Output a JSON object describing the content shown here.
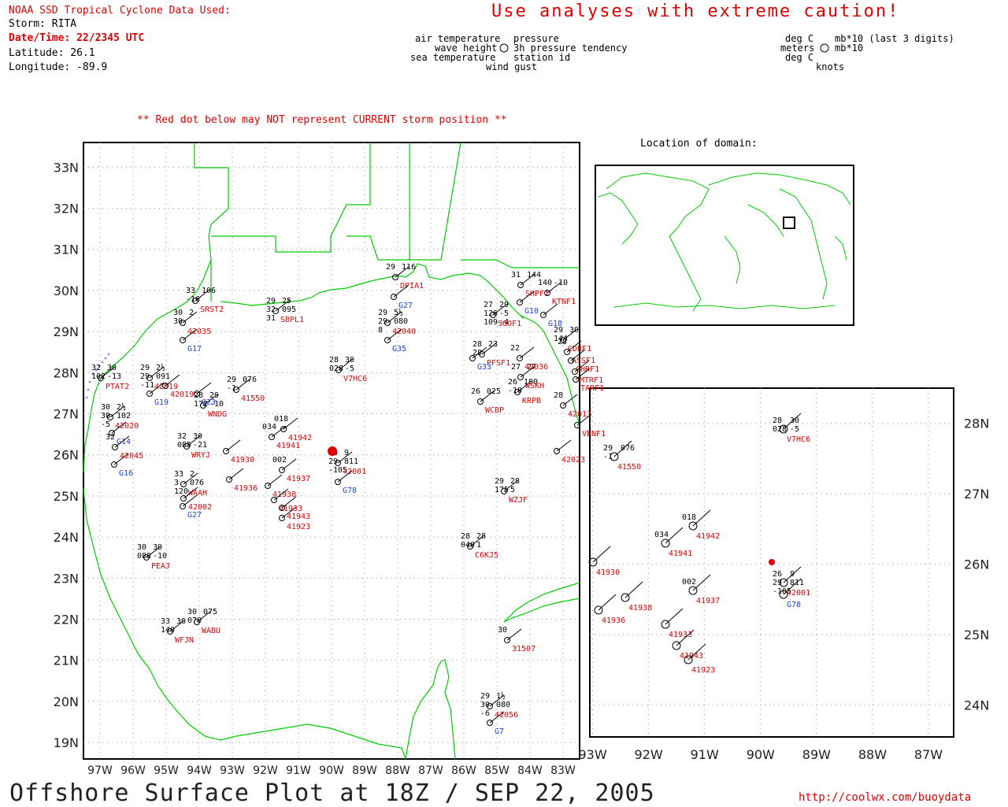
{
  "header": {
    "source_line": "NOAA SSD Tropical Cyclone Data Used:",
    "storm_line": "Storm: RITA",
    "datetime_line": "Date/Time: 22/2345 UTC",
    "latitude_line": "Latitude: 26.1",
    "longitude_line": "Longitude: -89.9",
    "caution": "Use analyses with extreme caution!",
    "red_dot_note": "** Red dot below may NOT represent CURRENT storm position **"
  },
  "legend_left": {
    "air_temperature": "air temperature",
    "wave_height": "wave height",
    "sea_temperature": "sea temperature",
    "wind_gust": "wind gust",
    "pressure": "pressure",
    "tendency": "3h pressure tendency",
    "station_id": "station id"
  },
  "legend_right": {
    "deg_c_1": "deg C",
    "meters": "meters",
    "deg_c_2": "deg C",
    "mb10_last3": "mb*10 (last 3 digits)",
    "mb10": "mb*10",
    "knots": "knots"
  },
  "inset_world": {
    "title": "Location of domain:"
  },
  "main_map": {
    "lat_labels": [
      "33N",
      "32N",
      "31N",
      "30N",
      "29N",
      "28N",
      "27N",
      "26N",
      "25N",
      "24N",
      "23N",
      "22N",
      "21N",
      "20N",
      "19N"
    ],
    "lon_labels": [
      "97W",
      "96W",
      "95W",
      "94W",
      "93W",
      "92W",
      "91W",
      "90W",
      "89W",
      "88W",
      "87W",
      "86W",
      "85W",
      "84W",
      "83W"
    ]
  },
  "zoom_map": {
    "lat_labels": [
      "28N",
      "27N",
      "26N",
      "25N",
      "24N"
    ],
    "lon_labels": [
      "93W",
      "92W",
      "91W",
      "90W",
      "89W",
      "88W",
      "87W"
    ]
  },
  "footer": {
    "title": "Offshore Surface Plot at 18Z / SEP 22, 2005",
    "url": "http://coolwx.com/buoydata"
  },
  "stations_main": [
    {
      "id": "DPIA1",
      "lines": [
        "29",
        "116"
      ],
      "color": "red"
    },
    {
      "id": "G27",
      "lines": [],
      "color": "blue"
    },
    {
      "id": "SRST2",
      "lines": [
        "33",
        "106",
        "-16"
      ],
      "color": "red"
    },
    {
      "id": "42035",
      "lines": [
        "30",
        "2",
        "30"
      ],
      "color": "red"
    },
    {
      "id": "G17",
      "lines": [],
      "color": "blue"
    },
    {
      "id": "SBPL1",
      "lines": [
        "29",
        "25",
        "32",
        "095",
        "31"
      ],
      "color": "red"
    },
    {
      "id": "42040",
      "lines": [
        "29",
        "5½",
        "29",
        "080",
        "8"
      ],
      "color": "red"
    },
    {
      "id": "G35",
      "lines": [],
      "color": "blue"
    },
    {
      "id": "V7HC6",
      "lines": [
        "28",
        "30",
        "028",
        "-5"
      ],
      "color": "red"
    },
    {
      "id": "42019",
      "lines": [
        "29",
        "2½",
        "29",
        "091",
        "-11"
      ],
      "color": "red"
    },
    {
      "id": "G19",
      "lines": [],
      "color": "blue"
    },
    {
      "id": "PTAT2",
      "lines": [
        "32",
        "30",
        "102",
        "-13"
      ],
      "color": "red"
    },
    {
      "id": "41550",
      "lines": [
        "29",
        "076",
        "-1"
      ],
      "color": "red"
    },
    {
      "id": "WNDG",
      "lines": [
        "28",
        "29",
        "172",
        "-10"
      ],
      "color": "red"
    },
    {
      "id": "42020",
      "lines": [
        "30",
        "2½",
        "30",
        "102",
        "-5"
      ],
      "color": "red"
    },
    {
      "id": "G14",
      "lines": [],
      "color": "blue"
    },
    {
      "id": "42045",
      "lines": [
        "32"
      ],
      "color": "red"
    },
    {
      "id": "G16",
      "lines": [],
      "color": "blue"
    },
    {
      "id": "41942",
      "lines": [
        "018"
      ],
      "color": "red"
    },
    {
      "id": "41941",
      "lines": [
        "034"
      ],
      "color": "red"
    },
    {
      "id": "41930",
      "lines": [],
      "color": "red"
    },
    {
      "id": "41937",
      "lines": [
        "002"
      ],
      "color": "red"
    },
    {
      "id": "41938",
      "lines": [],
      "color": "red"
    },
    {
      "id": "41936",
      "lines": [],
      "color": "red"
    },
    {
      "id": "41933",
      "lines": [],
      "color": "red"
    },
    {
      "id": "41943",
      "lines": [],
      "color": "red"
    },
    {
      "id": "41923",
      "lines": [],
      "color": "red"
    },
    {
      "id": "42001",
      "lines": [
        "26",
        "9",
        "29",
        "811",
        "-105"
      ],
      "color": "red"
    },
    {
      "id": "G78",
      "lines": [],
      "color": "blue"
    },
    {
      "id": "WRYJ",
      "lines": [
        "32",
        "30",
        "085",
        "-21"
      ],
      "color": "red"
    },
    {
      "id": "WAAH",
      "lines": [
        "33",
        "2",
        "3",
        "076",
        "120"
      ],
      "color": "red"
    },
    {
      "id": "42002",
      "lines": [],
      "color": "red"
    },
    {
      "id": "G27",
      "lines": [],
      "color": "blue"
    },
    {
      "id": "PEAJ",
      "lines": [
        "30",
        "30",
        "088",
        "-10"
      ],
      "color": "red"
    },
    {
      "id": "WABU",
      "lines": [
        "30",
        "075",
        "070"
      ],
      "color": "red"
    },
    {
      "id": "WFJN",
      "lines": [
        "33",
        "30",
        "140"
      ],
      "color": "red"
    },
    {
      "id": "C6KJ5",
      "lines": [
        "28",
        "28",
        "040",
        "1"
      ],
      "color": "red"
    },
    {
      "id": "WZJF",
      "lines": [
        "29",
        "28",
        "175",
        "5"
      ],
      "color": "red"
    },
    {
      "id": "31507",
      "lines": [
        "30"
      ],
      "color": "red"
    },
    {
      "id": "42056",
      "lines": [
        "29",
        "1½",
        "30",
        "080",
        "-6"
      ],
      "color": "red"
    },
    {
      "id": "G7",
      "lines": [],
      "color": "blue"
    },
    {
      "id": "WCBP",
      "lines": [
        "26",
        "025"
      ],
      "color": "red"
    },
    {
      "id": "KRPB",
      "lines": [
        "26",
        "100",
        "-10"
      ],
      "color": "red"
    },
    {
      "id": "WSKH",
      "lines": [
        "27",
        "27"
      ],
      "color": "red"
    },
    {
      "id": "42036",
      "lines": [
        "22"
      ],
      "color": "red"
    },
    {
      "id": "SGOF1",
      "lines": [
        "27",
        "29",
        "126",
        "-5",
        "109",
        "-4"
      ],
      "color": "red"
    },
    {
      "id": "SHPF1",
      "lines": [
        "31",
        "144"
      ],
      "color": "red"
    },
    {
      "id": "G10",
      "lines": [],
      "color": "blue"
    },
    {
      "id": "KTNF1",
      "lines": [
        "140",
        "-10"
      ],
      "color": "red"
    },
    {
      "id": "G18",
      "lines": [],
      "color": "blue"
    },
    {
      "id": "CDRF1",
      "lines": [
        "29",
        "30",
        "144"
      ],
      "color": "red"
    },
    {
      "id": "ASSF1",
      "lines": [
        "28"
      ],
      "color": "red"
    },
    {
      "id": "CHRF1",
      "lines": [],
      "color": "red"
    },
    {
      "id": "MTRF1",
      "lines": [],
      "color": "red"
    },
    {
      "id": "TARF1",
      "lines": [],
      "color": "red"
    },
    {
      "id": "42013",
      "lines": [
        "28"
      ],
      "color": "red"
    },
    {
      "id": "VENF1",
      "lines": [],
      "color": "red"
    },
    {
      "id": "42023",
      "lines": [],
      "color": "red"
    },
    {
      "id": "PFSF1",
      "lines": [
        "28",
        "23",
        "28"
      ],
      "color": "red"
    },
    {
      "id": "G33",
      "lines": [],
      "color": "blue"
    },
    {
      "id": "G23",
      "lines": [],
      "color": "blue"
    },
    {
      "id": "42019",
      "lines": [],
      "color": "red"
    }
  ],
  "stations_zoom": [
    {
      "id": "V7HC6",
      "lines": [
        "28",
        "30",
        "028",
        "-5"
      ],
      "color": "red"
    },
    {
      "id": "41550",
      "lines": [
        "29",
        "076",
        "-1"
      ],
      "color": "red"
    },
    {
      "id": "41942",
      "lines": [
        "018"
      ],
      "color": "red"
    },
    {
      "id": "41941",
      "lines": [
        "034"
      ],
      "color": "red"
    },
    {
      "id": "41930",
      "lines": [],
      "color": "red"
    },
    {
      "id": "41937",
      "lines": [
        "002"
      ],
      "color": "red"
    },
    {
      "id": "41938",
      "lines": [],
      "color": "red"
    },
    {
      "id": "41936",
      "lines": [],
      "color": "red"
    },
    {
      "id": "41933",
      "lines": [],
      "color": "red"
    },
    {
      "id": "41943",
      "lines": [],
      "color": "red"
    },
    {
      "id": "41923",
      "lines": [],
      "color": "red"
    },
    {
      "id": "42001",
      "lines": [
        "26",
        "9",
        "29",
        "811",
        "-105"
      ],
      "color": "red"
    },
    {
      "id": "G78",
      "lines": [],
      "color": "blue"
    }
  ],
  "colors": {
    "coast": "#00cc00",
    "red": "#e00000",
    "blue": "#2040e0",
    "grid": "#999999"
  }
}
